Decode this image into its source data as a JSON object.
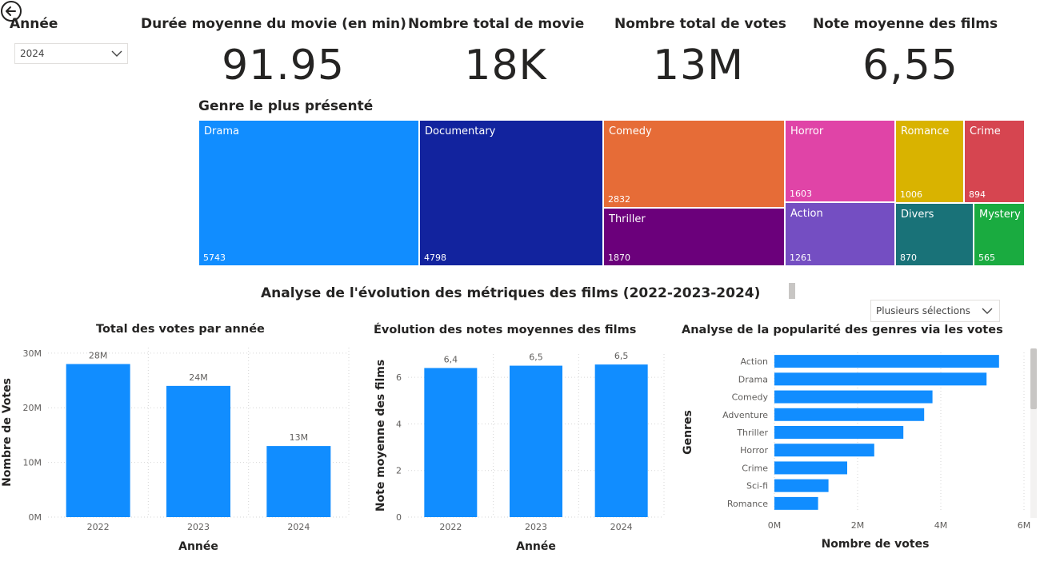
{
  "slicer": {
    "title": "Année",
    "selected": "2024"
  },
  "kpis": [
    {
      "label": "Durée moyenne du movie (en min)",
      "value": "91.95"
    },
    {
      "label": "Nombre total de movie",
      "value": "18K"
    },
    {
      "label": "Nombre total de votes",
      "value": "13M"
    },
    {
      "label": "Note moyenne des films",
      "value": "6,55"
    }
  ],
  "treemap_title": "Genre le plus présenté",
  "section_title": "Analyse de l'évolution des métriques des films (2022-2023-2024)",
  "multi_select": {
    "label": "Plusieurs sélections"
  },
  "colors": {
    "accent": "#118DFF"
  },
  "chart_data": [
    {
      "type": "treemap",
      "title": "Genre le plus présenté",
      "items": [
        {
          "name": "Drama",
          "value": 5743,
          "color": "#118DFF"
        },
        {
          "name": "Documentary",
          "value": 4798,
          "color": "#12239E"
        },
        {
          "name": "Comedy",
          "value": 2832,
          "color": "#E66C37"
        },
        {
          "name": "Thriller",
          "value": 1870,
          "color": "#6B007B"
        },
        {
          "name": "Horror",
          "value": 1603,
          "color": "#E044A7"
        },
        {
          "name": "Action",
          "value": 1261,
          "color": "#744EC2"
        },
        {
          "name": "Romance",
          "value": 1006,
          "color": "#D9B300"
        },
        {
          "name": "Crime",
          "value": 894,
          "color": "#D64550"
        },
        {
          "name": "Divers",
          "value": 870,
          "color": "#197278"
        },
        {
          "name": "Mystery",
          "value": 565,
          "color": "#1AAB40"
        }
      ]
    },
    {
      "type": "bar",
      "title": "Total des votes par année",
      "categories": [
        "2022",
        "2023",
        "2024"
      ],
      "values": [
        28,
        24,
        13
      ],
      "data_labels": [
        "28M",
        "24M",
        "13M"
      ],
      "xlabel": "Année",
      "ylabel": "Nombre de Votes",
      "yticks": [
        "0M",
        "10M",
        "20M",
        "30M"
      ],
      "ylim": [
        0,
        31
      ]
    },
    {
      "type": "bar",
      "title": "Évolution des notes moyennes des films",
      "categories": [
        "2022",
        "2023",
        "2024"
      ],
      "values": [
        6.4,
        6.5,
        6.55
      ],
      "data_labels": [
        "6,4",
        "6,5",
        "6,5"
      ],
      "xlabel": "Année",
      "ylabel": "Note moyenne des films",
      "yticks": [
        "0",
        "2",
        "4",
        "6"
      ],
      "ylim": [
        0,
        7
      ]
    },
    {
      "type": "bar",
      "orientation": "horizontal",
      "title": "Analyse de la popularité des genres via les votes",
      "categories": [
        "Action",
        "Drama",
        "Comedy",
        "Adventure",
        "Thriller",
        "Horror",
        "Crime",
        "Sci-fi",
        "Romance"
      ],
      "values": [
        5.4,
        5.1,
        3.8,
        3.6,
        3.1,
        2.4,
        1.75,
        1.3,
        1.05
      ],
      "xlabel": "Nombre de votes",
      "ylabel": "Genres",
      "xticks": [
        "0M",
        "2M",
        "4M",
        "6M"
      ],
      "xlim": [
        0,
        6
      ]
    }
  ]
}
